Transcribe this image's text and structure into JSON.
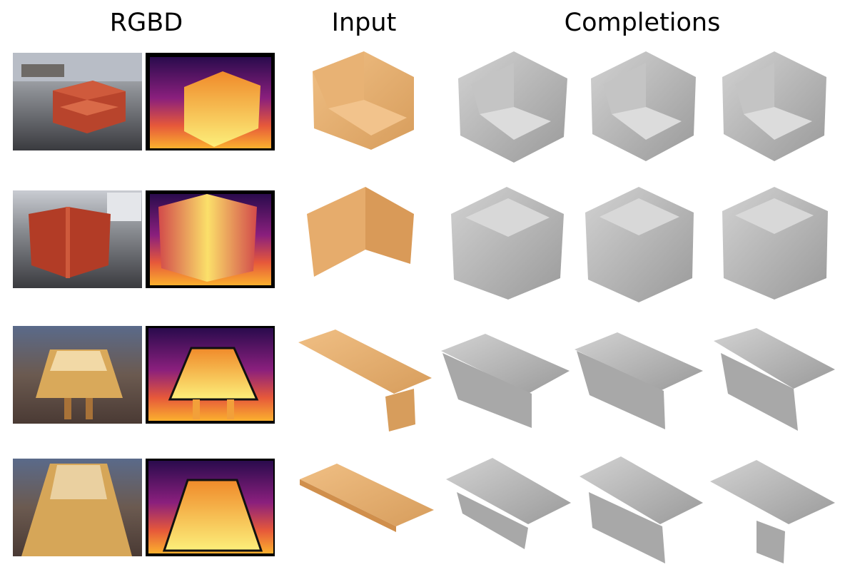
{
  "headers": {
    "rgbd": "RGBD",
    "input": "Input",
    "completions": "Completions"
  },
  "colors": {
    "background": "#ffffff",
    "input_shape": "#e3ac6f",
    "completion_shape": "#b9b9b9",
    "depth_low": "#1a0a3a",
    "depth_mid": "#c8377a",
    "depth_high": "#fbe06a"
  },
  "rows": [
    {
      "object": "corner-chair-front",
      "completions": 3
    },
    {
      "object": "corner-chair-back",
      "completions": 3
    },
    {
      "object": "table-legs",
      "completions": 3
    },
    {
      "object": "table-top",
      "completions": 3
    }
  ]
}
